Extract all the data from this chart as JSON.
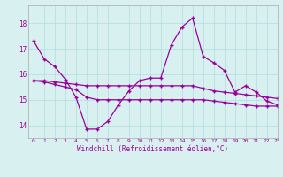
{
  "x": [
    0,
    1,
    2,
    3,
    4,
    5,
    6,
    7,
    8,
    9,
    10,
    11,
    12,
    13,
    14,
    15,
    16,
    17,
    18,
    19,
    20,
    21,
    22,
    23
  ],
  "line1": [
    17.3,
    16.6,
    16.3,
    15.8,
    15.1,
    13.85,
    13.85,
    14.15,
    14.8,
    15.35,
    15.75,
    15.85,
    15.85,
    17.15,
    17.85,
    18.2,
    16.7,
    16.45,
    16.15,
    15.3,
    15.55,
    15.3,
    14.95,
    14.8
  ],
  "line2": [
    15.75,
    15.75,
    15.7,
    15.65,
    15.6,
    15.55,
    15.55,
    15.55,
    15.55,
    15.55,
    15.55,
    15.55,
    15.55,
    15.55,
    15.55,
    15.55,
    15.45,
    15.35,
    15.3,
    15.25,
    15.2,
    15.15,
    15.1,
    15.05
  ],
  "line3": [
    15.75,
    15.7,
    15.6,
    15.5,
    15.4,
    15.1,
    15.0,
    15.0,
    15.0,
    15.0,
    15.0,
    15.0,
    15.0,
    15.0,
    15.0,
    15.0,
    15.0,
    14.95,
    14.9,
    14.85,
    14.8,
    14.75,
    14.75,
    14.75
  ],
  "line_color": "#990099",
  "bg_color": "#d8f0f0",
  "grid_color": "#b0dede",
  "xlabel": "Windchill (Refroidissement éolien,°C)",
  "ylim": [
    13.5,
    18.7
  ],
  "xlim": [
    -0.5,
    23
  ],
  "yticks": [
    14,
    15,
    16,
    17,
    18
  ],
  "xticks": [
    0,
    1,
    2,
    3,
    4,
    5,
    6,
    7,
    8,
    9,
    10,
    11,
    12,
    13,
    14,
    15,
    16,
    17,
    18,
    19,
    20,
    21,
    22,
    23
  ],
  "marker": "+"
}
